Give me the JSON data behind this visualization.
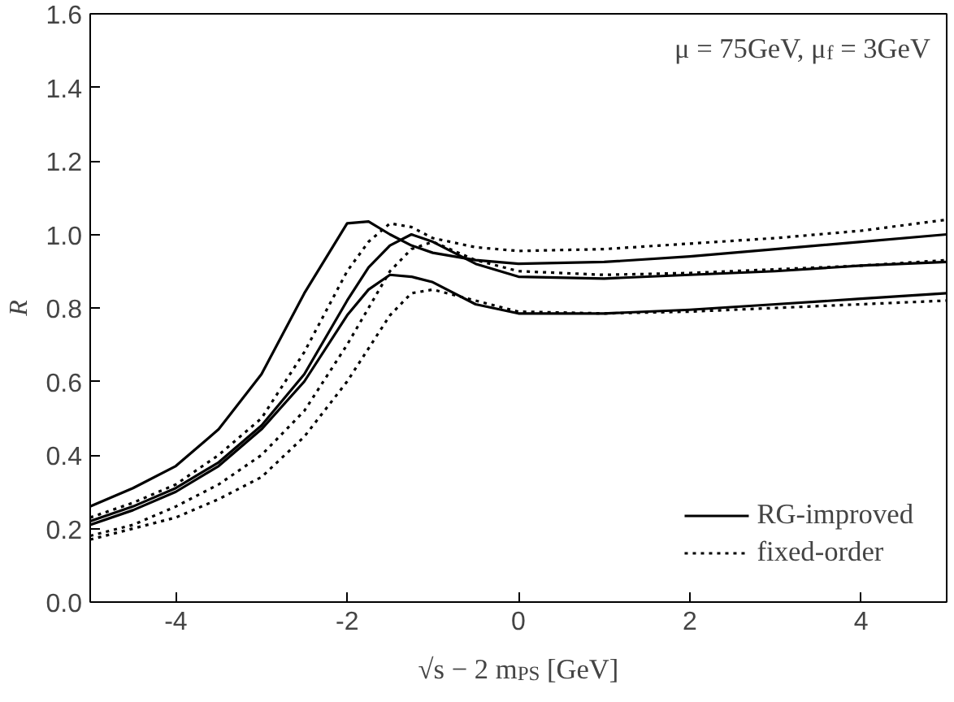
{
  "chart_data": {
    "type": "line",
    "xlabel": "√s − 2 m$_{PS}$ [GeV]",
    "ylabel": "R",
    "annotations": [
      "μ = 75GeV, μ$_{f}$ = 3GeV"
    ],
    "xlim": [
      -5,
      5
    ],
    "ylim": [
      0,
      1.6
    ],
    "xticks": [
      -4,
      -2,
      0,
      2,
      4
    ],
    "yticks": [
      {
        "value": 0,
        "label": "0.0"
      },
      0.2,
      0.4,
      0.6,
      0.8,
      {
        "value": 1,
        "label": "1.0"
      },
      1.2,
      1.4,
      1.6
    ],
    "grid": false,
    "legend": "bottom right",
    "marker": "none",
    "x": [
      -5,
      -4.5,
      -4,
      -3.5,
      -3,
      -2.5,
      -2,
      -1.75,
      -1.5,
      -1.25,
      -1,
      -0.5,
      0,
      1,
      2,
      3,
      4,
      5
    ],
    "series": [
      {
        "name": "RG-improved",
        "color": "#000000",
        "line_style": "solid",
        "values": [
          0.26,
          0.31,
          0.37,
          0.47,
          0.62,
          0.84,
          1.03,
          1.035,
          1.0,
          0.97,
          0.95,
          0.93,
          0.92,
          0.925,
          0.94,
          0.96,
          0.98,
          1.0
        ]
      },
      {
        "color": "#000000",
        "line_style": "solid",
        "values": [
          0.22,
          0.26,
          0.31,
          0.38,
          0.48,
          0.62,
          0.82,
          0.91,
          0.97,
          1.0,
          0.98,
          0.92,
          0.885,
          0.88,
          0.89,
          0.9,
          0.915,
          0.925
        ]
      },
      {
        "color": "#000000",
        "line_style": "solid",
        "values": [
          0.21,
          0.25,
          0.3,
          0.37,
          0.47,
          0.6,
          0.78,
          0.85,
          0.89,
          0.885,
          0.87,
          0.81,
          0.785,
          0.785,
          0.795,
          0.81,
          0.825,
          0.84
        ]
      },
      {
        "name": "fixed-order",
        "color": "#000000",
        "line_style": "dotted",
        "values": [
          0.23,
          0.27,
          0.32,
          0.4,
          0.5,
          0.68,
          0.9,
          0.98,
          1.03,
          1.02,
          0.99,
          0.965,
          0.955,
          0.96,
          0.975,
          0.99,
          1.01,
          1.04
        ]
      },
      {
        "color": "#000000",
        "line_style": "dotted",
        "values": [
          0.18,
          0.21,
          0.26,
          0.32,
          0.4,
          0.52,
          0.7,
          0.8,
          0.9,
          0.96,
          0.98,
          0.93,
          0.9,
          0.89,
          0.895,
          0.905,
          0.915,
          0.93
        ]
      },
      {
        "color": "#000000",
        "line_style": "dotted",
        "values": [
          0.17,
          0.2,
          0.23,
          0.28,
          0.34,
          0.45,
          0.6,
          0.69,
          0.78,
          0.84,
          0.85,
          0.82,
          0.79,
          0.785,
          0.79,
          0.8,
          0.81,
          0.82
        ]
      }
    ]
  }
}
